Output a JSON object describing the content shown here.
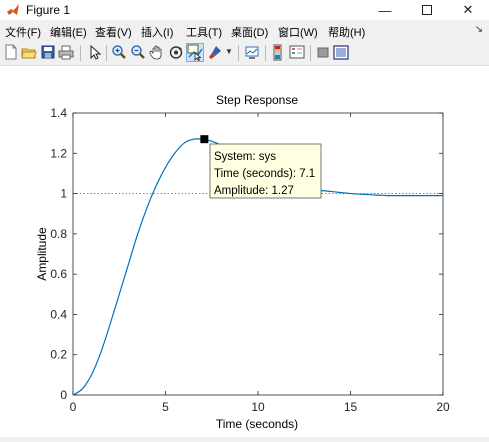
{
  "window": {
    "title": "Figure 1",
    "icon": "matlab-icon",
    "controls": [
      "minimize",
      "maximize",
      "close"
    ]
  },
  "menu": {
    "items": [
      "文件(F)",
      "编辑(E)",
      "查看(V)",
      "插入(I)",
      "工具(T)",
      "桌面(D)",
      "窗口(W)",
      "帮助(H)"
    ],
    "overflow_icon": "dock-arrow-icon"
  },
  "toolbar": {
    "buttons": [
      "new-figure-icon",
      "open-icon",
      "save-icon",
      "print-icon",
      "edit-plot-icon",
      "zoom-in-icon",
      "zoom-out-icon",
      "pan-icon",
      "rotate-3d-icon",
      "data-cursor-icon",
      "brush-icon",
      "link-plot-icon",
      "colorbar-icon",
      "legend-icon",
      "hide-plot-tools-icon",
      "show-plot-tools-icon"
    ],
    "active": "data-cursor-icon"
  },
  "chart_data": {
    "type": "line",
    "title": "Step Response",
    "xlabel": "Time (seconds)",
    "ylabel": "Amplitude",
    "xlim": [
      0,
      20
    ],
    "ylim": [
      0,
      1.4
    ],
    "xticks": [
      "0",
      "5",
      "10",
      "15",
      "20"
    ],
    "yticks": [
      "0",
      "0.2",
      "0.4",
      "0.6",
      "0.8",
      "1",
      "1.2",
      "1.4"
    ],
    "reference_line": 1,
    "line_color": "#0072bd",
    "grid": false,
    "series": [
      {
        "x": [
          0,
          0.5,
          1,
          1.5,
          2,
          2.5,
          3,
          3.5,
          4,
          4.5,
          5,
          5.5,
          6,
          6.5,
          7,
          7.5,
          8,
          8.5,
          9,
          9.5,
          10,
          11,
          12,
          13,
          14,
          15,
          16,
          17,
          18,
          19,
          20
        ],
        "y": [
          0,
          0.03,
          0.1,
          0.21,
          0.35,
          0.5,
          0.65,
          0.8,
          0.93,
          1.04,
          1.13,
          1.2,
          1.25,
          1.27,
          1.27,
          1.26,
          1.24,
          1.21,
          1.18,
          1.15,
          1.12,
          1.07,
          1.04,
          1.02,
          1.01,
          1.0,
          0.995,
          0.99,
          0.99,
          0.99,
          0.99
        ]
      }
    ],
    "datatip": {
      "x": 7.1,
      "y": 1.27,
      "lines": [
        "System: sys",
        "Time (seconds): 7.1",
        "Amplitude: 1.27"
      ]
    }
  }
}
